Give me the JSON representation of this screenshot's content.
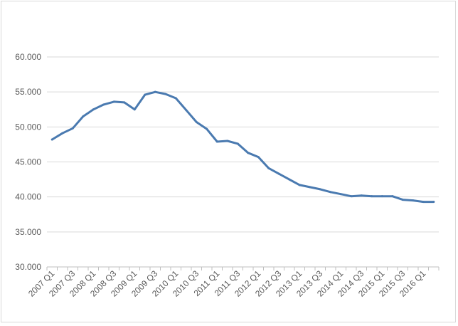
{
  "chart_data": {
    "type": "line",
    "title": "",
    "xlabel": "",
    "ylabel": "",
    "ylim": [
      30000,
      60000
    ],
    "yticks": [
      30000,
      35000,
      40000,
      45000,
      50000,
      55000,
      60000
    ],
    "ytick_labels": [
      "30.000",
      "35.000",
      "40.000",
      "45.000",
      "50.000",
      "55.000",
      "60.000"
    ],
    "grid": "horizontal",
    "legend": "none",
    "x": [
      "2007 Q1",
      "2007 Q2",
      "2007 Q3",
      "2007 Q4",
      "2008 Q1",
      "2008 Q2",
      "2008 Q3",
      "2008 Q4",
      "2009 Q1",
      "2009 Q2",
      "2009 Q3",
      "2009 Q4",
      "2010 Q1",
      "2010 Q2",
      "2010 Q3",
      "2010 Q4",
      "2011 Q1",
      "2011 Q2",
      "2011 Q3",
      "2011 Q4",
      "2012 Q1",
      "2012 Q2",
      "2012 Q3",
      "2012 Q4",
      "2013 Q1",
      "2013 Q2",
      "2013 Q3",
      "2013 Q4",
      "2014 Q1",
      "2014 Q2",
      "2014 Q3",
      "2014 Q4",
      "2015 Q1",
      "2015 Q2",
      "2015 Q3",
      "2015 Q4",
      "2016 Q1",
      "2016 Q2"
    ],
    "xtick_labels": [
      "2007 Q1",
      "2007 Q3",
      "2008 Q1",
      "2008 Q3",
      "2009 Q1",
      "2009 Q3",
      "2010 Q1",
      "2010 Q3",
      "2011 Q1",
      "2011 Q3",
      "2012 Q1",
      "2012 Q3",
      "2013 Q1",
      "2013 Q3",
      "2014 Q1",
      "2014 Q3",
      "2015 Q1",
      "2015 Q3",
      "2016 Q1"
    ],
    "series": [
      {
        "color": "#4a7ab0",
        "values": [
          48200,
          49100,
          49800,
          51500,
          52500,
          53200,
          53600,
          53500,
          52500,
          54600,
          55000,
          54700,
          54100,
          52400,
          50700,
          49700,
          47900,
          48000,
          47600,
          46300,
          45700,
          44100,
          43300,
          42500,
          41700,
          41400,
          41100,
          40700,
          40400,
          40100,
          40200,
          40100,
          40100,
          40100,
          39600,
          39500,
          39300,
          39300
        ]
      }
    ]
  }
}
